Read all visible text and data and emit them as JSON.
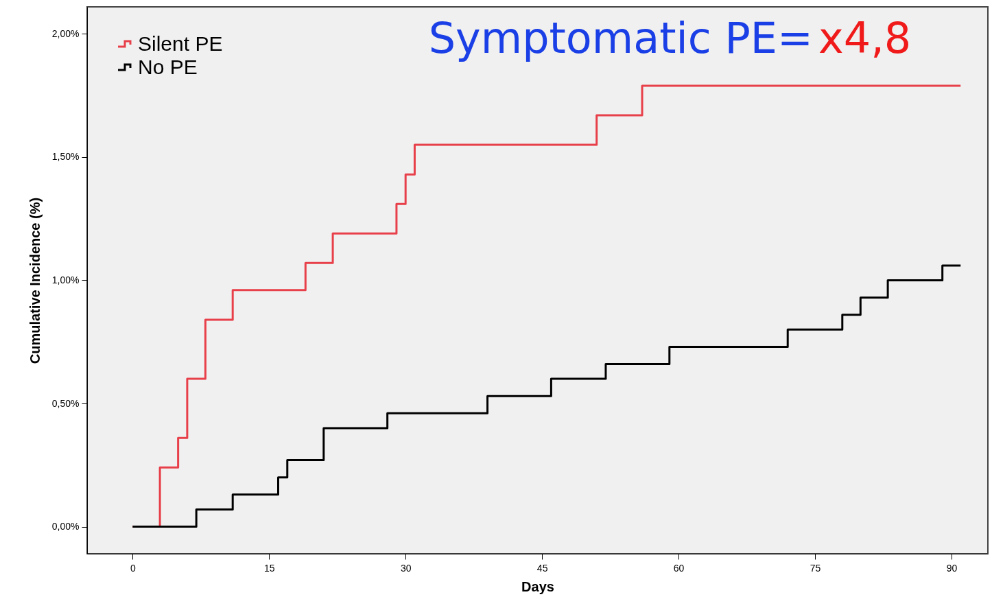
{
  "chart_data": {
    "type": "step",
    "xlabel": "Days",
    "ylabel": "Cumulative Incidence (%)",
    "xlim": [
      -5,
      94
    ],
    "ylim": [
      -0.11,
      2.11
    ],
    "xticks": [
      0,
      15,
      30,
      45,
      60,
      75,
      90
    ],
    "yticks": [
      {
        "value": 0,
        "label": "0,00%"
      },
      {
        "value": 0.5,
        "label": "0,50%"
      },
      {
        "value": 1,
        "label": "1,00%"
      },
      {
        "value": 1.5,
        "label": "1,50%"
      },
      {
        "value": 2,
        "label": "2,00%"
      }
    ],
    "series": [
      {
        "name": "Silent PE",
        "color": "#e8404a",
        "x": [
          0,
          3,
          5,
          6,
          8,
          11,
          19,
          22,
          29,
          30,
          31,
          51,
          56,
          91
        ],
        "values": [
          0,
          0.24,
          0.36,
          0.6,
          0.84,
          0.96,
          1.07,
          1.19,
          1.31,
          1.43,
          1.55,
          1.67,
          1.79,
          1.79
        ]
      },
      {
        "name": "No PE",
        "color": "#000000",
        "x": [
          0,
          7,
          11,
          16,
          17,
          21,
          28,
          39,
          46,
          52,
          59,
          72,
          78,
          80,
          83,
          89,
          91
        ],
        "values": [
          0,
          0.07,
          0.13,
          0.2,
          0.27,
          0.4,
          0.46,
          0.53,
          0.6,
          0.66,
          0.73,
          0.8,
          0.86,
          0.93,
          1,
          1.06,
          1.06
        ]
      }
    ],
    "annotations": [
      "Symptomatic PE=",
      "x4,8"
    ],
    "legend": "top left",
    "grid": false
  }
}
